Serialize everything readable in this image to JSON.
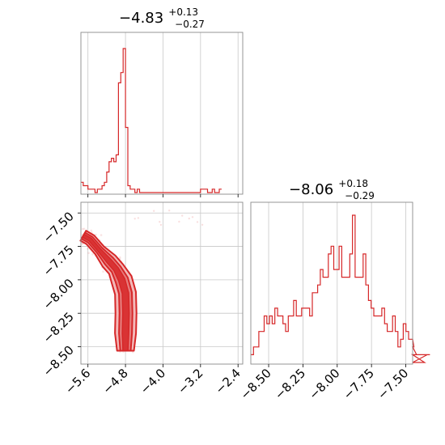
{
  "colors": {
    "series": "#d62728",
    "contour_fill_outer": "#f3b9b9",
    "contour_fill_inner": "#e67c7c",
    "grid": "#c8c8c8",
    "axis": "#8a8a8a"
  },
  "chart_data": [
    {
      "type": "histogram",
      "panel": "top-left",
      "parameter_index": 0,
      "title": {
        "median": "−4.83",
        "plus": "+0.13",
        "minus": "−0.27"
      },
      "xlim": [
        -5.75,
        -2.3
      ],
      "x_ticks": [
        -5.6,
        -4.8,
        -4.0,
        -3.2,
        -2.4
      ],
      "grid": true,
      "bins": {
        "edges": [
          -5.75,
          -5.7,
          -5.65,
          -5.6,
          -5.55,
          -5.5,
          -5.45,
          -5.4,
          -5.35,
          -5.3,
          -5.25,
          -5.2,
          -5.15,
          -5.1,
          -5.05,
          -5.0,
          -4.95,
          -4.9,
          -4.85,
          -4.8,
          -4.75,
          -4.7,
          -4.65,
          -4.6,
          -4.55,
          -4.5,
          -4.45,
          -4.4,
          -3.2,
          -3.15,
          -3.1,
          -3.05,
          -2.95,
          -2.9,
          -2.8,
          -2.75
        ],
        "counts": [
          3,
          2,
          2,
          1,
          1,
          1,
          0,
          1,
          1,
          2,
          3,
          6,
          9,
          10,
          9,
          11,
          32,
          35,
          42,
          19,
          2,
          1,
          1,
          0,
          1,
          0,
          0,
          0,
          1,
          1,
          1,
          0,
          1,
          0,
          1
        ]
      }
    },
    {
      "type": "contour-scatter",
      "panel": "bottom-left",
      "xlim": [
        -5.75,
        -2.3
      ],
      "ylim": [
        -8.63,
        -7.42
      ],
      "x_ticks": [
        "−5.6",
        "−4.8",
        "−4.0",
        "−3.2",
        "−2.4"
      ],
      "x_tick_values": [
        -5.6,
        -4.8,
        -4.0,
        -3.2,
        -2.4
      ],
      "y_ticks": [
        "−7.50",
        "−7.75",
        "−8.00",
        "−8.25",
        "−8.50"
      ],
      "y_tick_values": [
        -7.5,
        -7.75,
        -8.0,
        -8.25,
        -8.5
      ],
      "grid": true,
      "contour_ridge": [
        [
          -5.7,
          -7.67
        ],
        [
          -5.55,
          -7.7
        ],
        [
          -5.35,
          -7.78
        ],
        [
          -5.15,
          -7.86
        ],
        [
          -5.0,
          -7.92
        ],
        [
          -4.88,
          -8.0
        ],
        [
          -4.8,
          -8.1
        ],
        [
          -4.79,
          -8.25
        ],
        [
          -4.8,
          -8.4
        ],
        [
          -4.8,
          -8.53
        ]
      ]
    },
    {
      "type": "histogram",
      "panel": "bottom-right",
      "parameter_index": 1,
      "title": {
        "median": "−8.06",
        "plus": "+0.18",
        "minus": "−0.29"
      },
      "xlim": [
        -8.63,
        -7.45
      ],
      "x_ticks": [
        "−8.50",
        "−8.25",
        "−8.00",
        "−7.75",
        "−7.50"
      ],
      "x_tick_values": [
        -8.5,
        -8.25,
        -8.0,
        -7.75,
        -7.5
      ],
      "grid": true,
      "bins": {
        "start": -8.63,
        "width": 0.0195,
        "counts": [
          1,
          2,
          2,
          4,
          4,
          6,
          5,
          6,
          5,
          7,
          6,
          6,
          5,
          4,
          6,
          6,
          8,
          6,
          6,
          7,
          7,
          7,
          6,
          9,
          9,
          10,
          12,
          11,
          11,
          14,
          15,
          12,
          12,
          15,
          11,
          11,
          11,
          14,
          19,
          11,
          11,
          11,
          14,
          10,
          8,
          7,
          6,
          6,
          6,
          7,
          5,
          4,
          4,
          6,
          4,
          2,
          3,
          5,
          4,
          3,
          3,
          2,
          1,
          1,
          1,
          0,
          1,
          1
        ]
      }
    }
  ]
}
